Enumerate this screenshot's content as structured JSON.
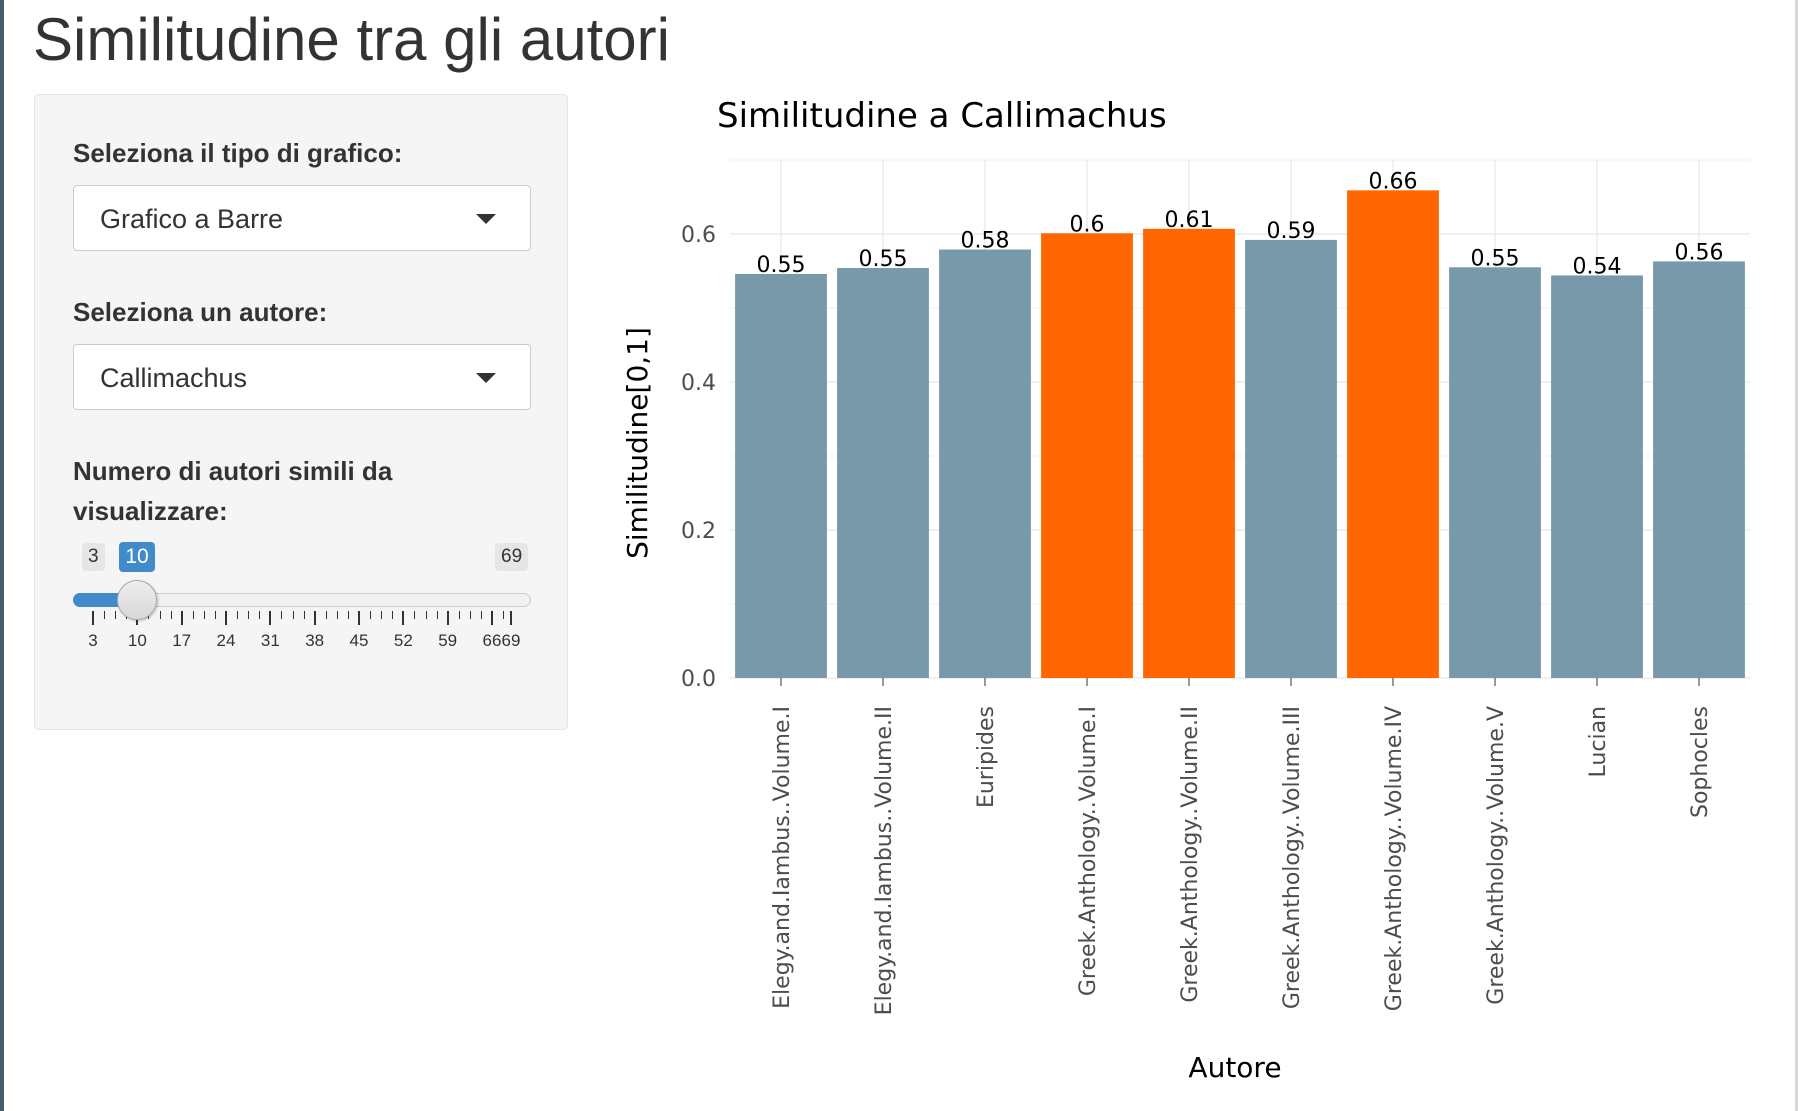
{
  "page": {
    "title": "Similitudine tra gli autori"
  },
  "sidebar": {
    "chart_type": {
      "label": "Seleziona il tipo di grafico:",
      "selected": "Grafico a Barre",
      "icon": "chevron-down-icon"
    },
    "author": {
      "label": "Seleziona un autore:",
      "selected": "Callimachus",
      "icon": "chevron-down-icon"
    },
    "slider": {
      "label_line1": "Numero di autori simili da",
      "label_line2": "visualizzare:",
      "min": 3,
      "max": 69,
      "value": 10,
      "min_label": "3",
      "max_label": "69",
      "value_label": "10",
      "tick_labels": [
        "3",
        "10",
        "17",
        "24",
        "31",
        "38",
        "45",
        "52",
        "59",
        "66",
        "69"
      ],
      "tick_values": [
        3,
        10,
        17,
        24,
        31,
        38,
        45,
        52,
        59,
        66,
        69
      ],
      "accent_color": "#428bca"
    }
  },
  "chart_data": {
    "type": "bar",
    "title": "Similitudine a  Callimachus",
    "xlabel": "Autore",
    "ylabel": "Similitudine[0,1]",
    "ylim": [
      0,
      0.7
    ],
    "yticks": [
      0.0,
      0.2,
      0.4,
      0.6
    ],
    "ytick_labels": [
      "0.0",
      "0.2",
      "0.4",
      "0.6"
    ],
    "grid": true,
    "categories": [
      "Elegy.and.Iambus..Volume.I",
      "Elegy.and.Iambus..Volume.II",
      "Euripides",
      "Greek.Anthology..Volume.I",
      "Greek.Anthology..Volume.II",
      "Greek.Anthology..Volume.III",
      "Greek.Anthology..Volume.IV",
      "Greek.Anthology..Volume.V",
      "Lucian",
      "Sophocles"
    ],
    "values": [
      0.546,
      0.554,
      0.579,
      0.601,
      0.607,
      0.592,
      0.659,
      0.555,
      0.544,
      0.563
    ],
    "value_labels": [
      "0.55",
      "0.55",
      "0.58",
      "0.6",
      "0.61",
      "0.59",
      "0.66",
      "0.55",
      "0.54",
      "0.56"
    ],
    "highlight": [
      false,
      false,
      false,
      true,
      true,
      false,
      true,
      false,
      false,
      false
    ],
    "colors": {
      "default": "#7799a9",
      "highlight": "#ff6600",
      "grid": "#ebebeb",
      "text": "#000000",
      "tick_text": "#4d4d4d"
    }
  }
}
